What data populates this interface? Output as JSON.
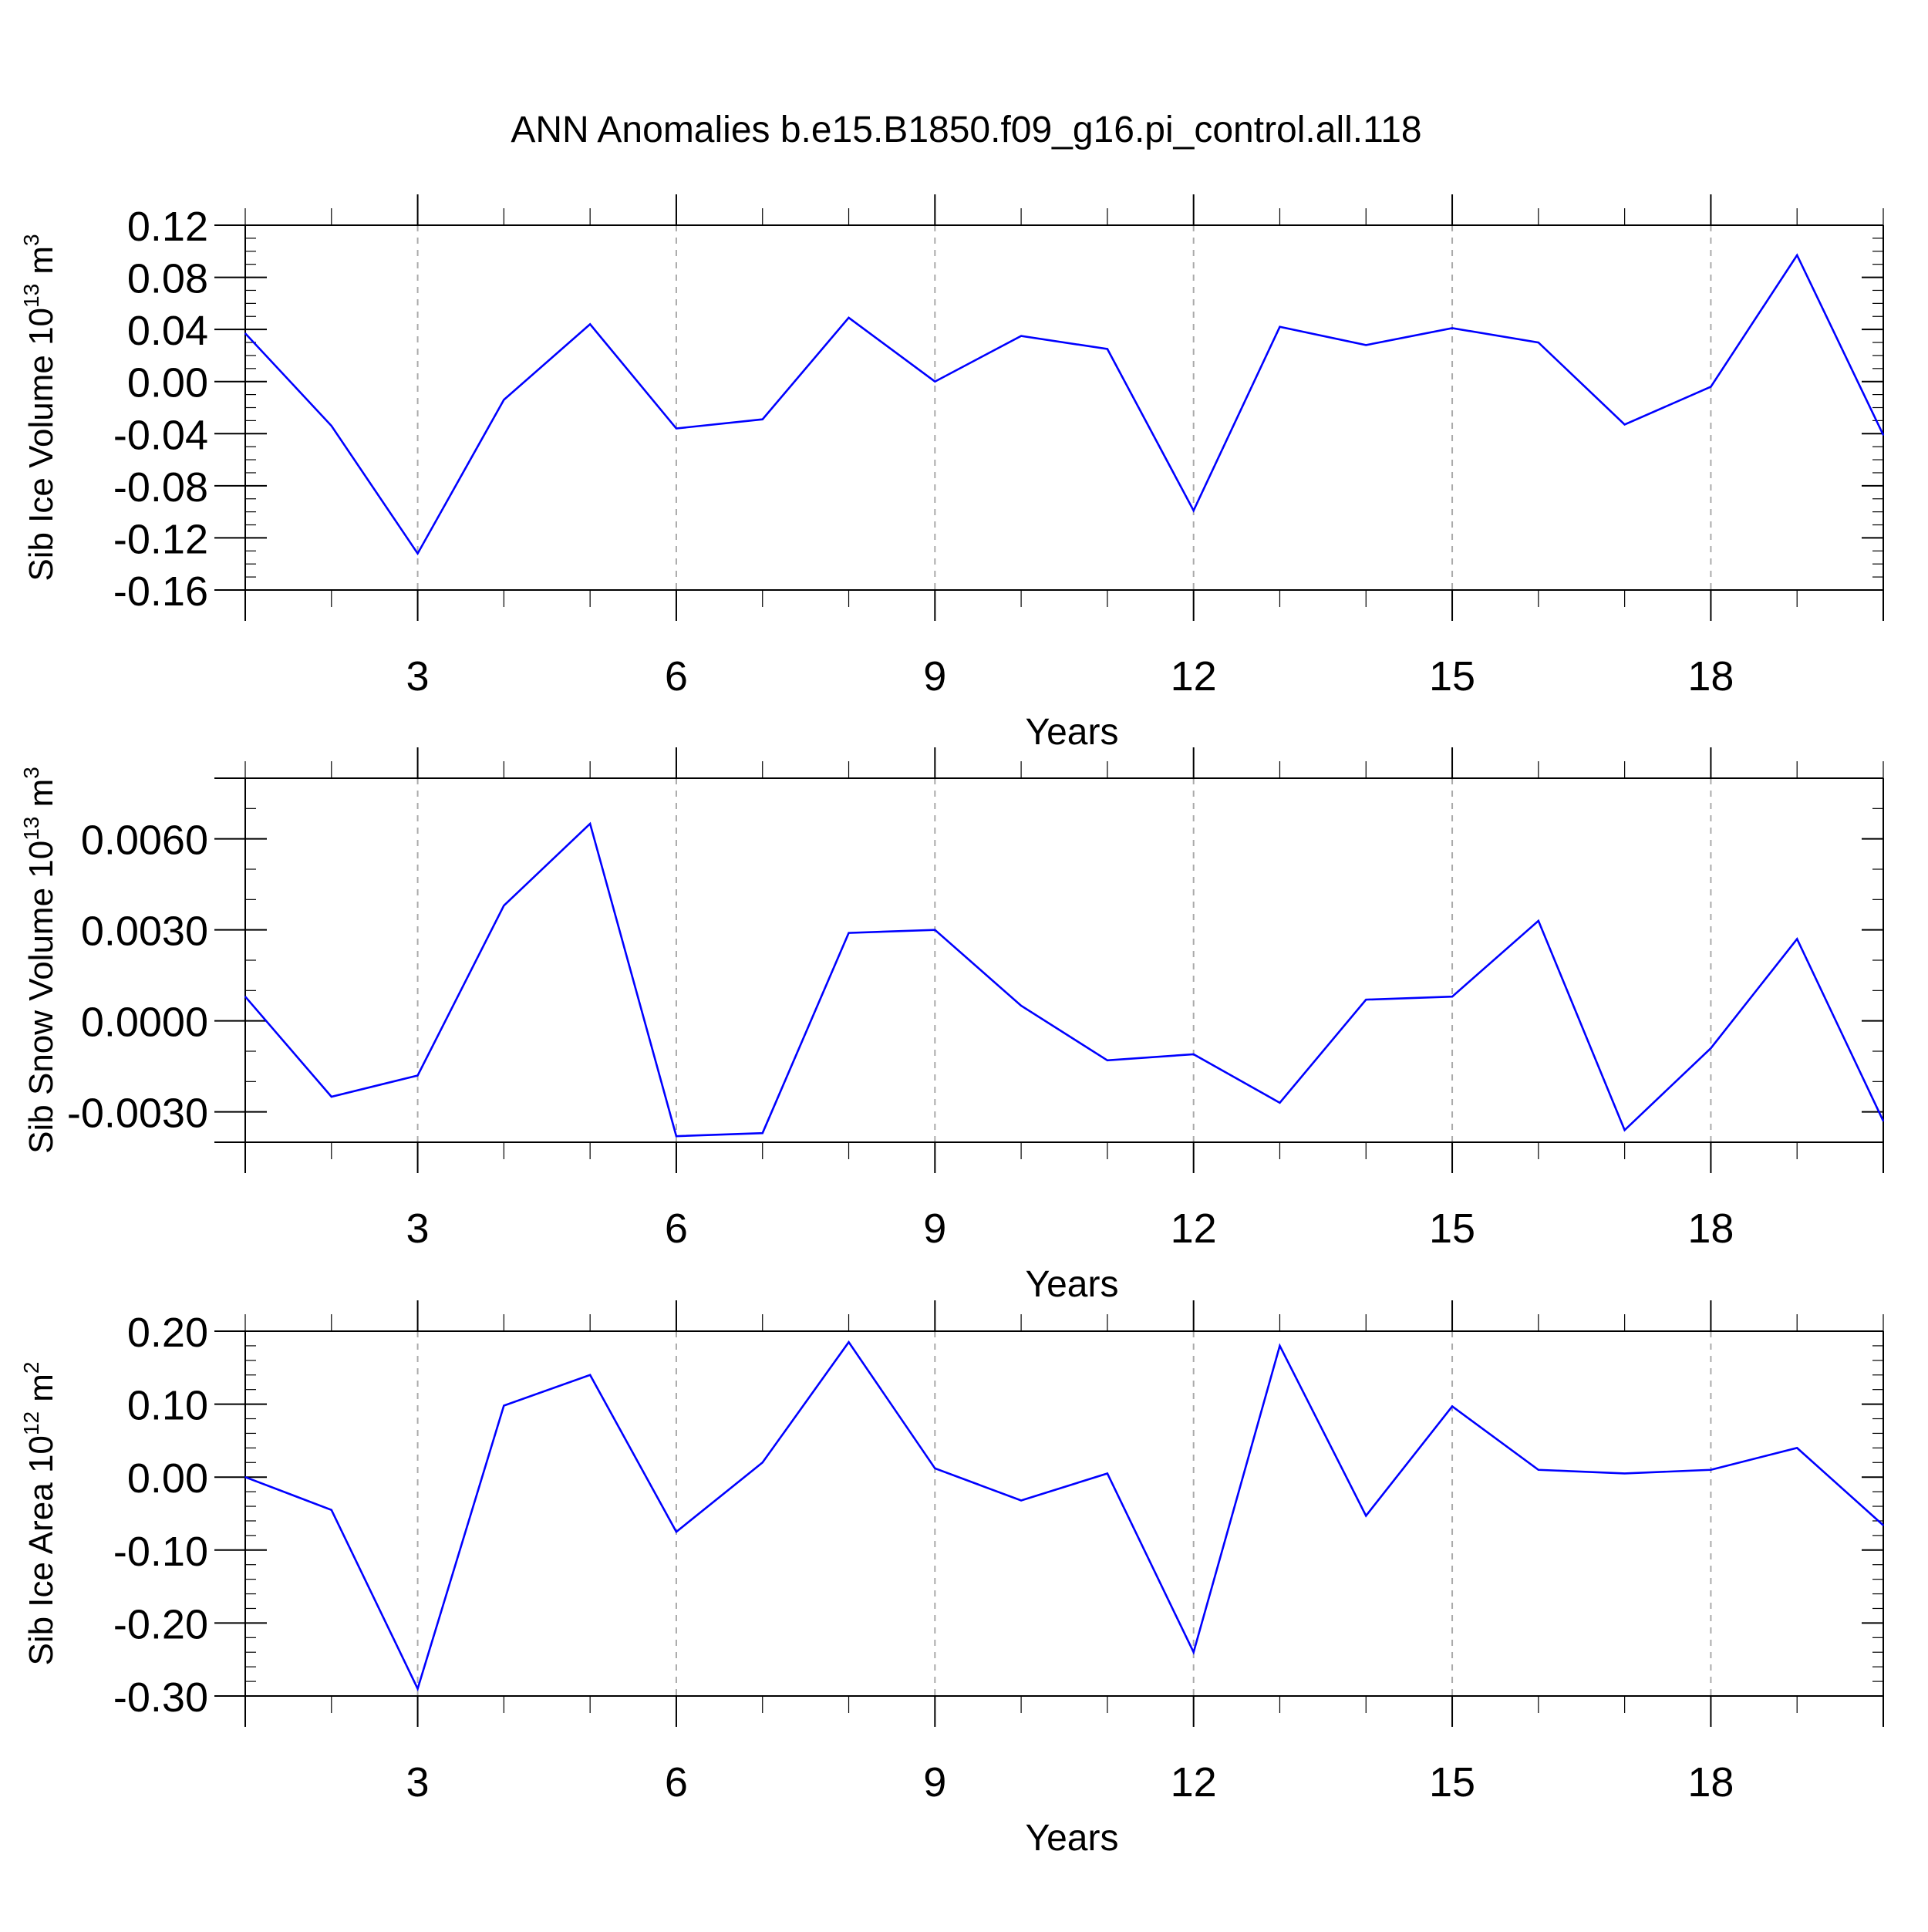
{
  "title": "ANN Anomalies b.e15.B1850.f09_g16.pi_control.all.118",
  "chart_data": [
    {
      "type": "line",
      "ylabel_main": "Sib Ice Volume 10",
      "ylabel_sup": "13",
      "ylabel_unit": " m",
      "ylabel_unit_sup": "3",
      "xlabel": "Years",
      "xlim": [
        1,
        20
      ],
      "ylim": [
        -0.16,
        0.12
      ],
      "yticks": [
        -0.16,
        -0.12,
        -0.08,
        -0.04,
        0.0,
        0.04,
        0.08,
        0.12
      ],
      "ytick_labels": [
        "-0.16",
        "-0.12",
        "-0.08",
        "-0.04",
        "0.00",
        "0.04",
        "0.08",
        "0.12"
      ],
      "y_minor_step": 0.01,
      "xticks": [
        3,
        6,
        9,
        12,
        15,
        18
      ],
      "xtick_labels": [
        "3",
        "6",
        "9",
        "12",
        "15",
        "18"
      ],
      "grid": "dashed vertical at major x ticks",
      "color": "#0000ff",
      "x": [
        1,
        2,
        3,
        4,
        5,
        6,
        7,
        8,
        9,
        10,
        11,
        12,
        13,
        14,
        15,
        16,
        17,
        18,
        19,
        20
      ],
      "values": [
        0.037,
        -0.034,
        -0.132,
        -0.014,
        0.044,
        -0.036,
        -0.029,
        0.049,
        0.0,
        0.035,
        0.025,
        -0.099,
        0.042,
        0.028,
        0.041,
        0.03,
        -0.033,
        -0.004,
        0.097,
        -0.041
      ]
    },
    {
      "type": "line",
      "ylabel_main": "Sib Snow Volume 10",
      "ylabel_sup": "13",
      "ylabel_unit": " m",
      "ylabel_unit_sup": "3",
      "xlabel": "Years",
      "xlim": [
        1,
        20
      ],
      "ylim": [
        -0.004,
        0.008
      ],
      "yticks": [
        -0.003,
        0.0,
        0.003,
        0.006
      ],
      "ytick_labels": [
        "-0.0030",
        "0.0000",
        "0.0030",
        "0.0060"
      ],
      "y_minor_step": 0.001,
      "xticks": [
        3,
        6,
        9,
        12,
        15,
        18
      ],
      "xtick_labels": [
        "3",
        "6",
        "9",
        "12",
        "15",
        "18"
      ],
      "grid": "dashed vertical at major x ticks",
      "color": "#0000ff",
      "x": [
        1,
        2,
        3,
        4,
        5,
        6,
        7,
        8,
        9,
        10,
        11,
        12,
        13,
        14,
        15,
        16,
        17,
        18,
        19,
        20
      ],
      "values": [
        0.0008,
        -0.0025,
        -0.0018,
        0.0038,
        0.0065,
        -0.0038,
        -0.0037,
        0.0029,
        0.003,
        0.0005,
        -0.0013,
        -0.0011,
        -0.0027,
        0.0007,
        0.0008,
        0.0033,
        -0.0036,
        -0.0009,
        0.0027,
        -0.0033
      ]
    },
    {
      "type": "line",
      "ylabel_main": "Sib Ice Area 10",
      "ylabel_sup": "12",
      "ylabel_unit": " m",
      "ylabel_unit_sup": "2",
      "xlabel": "Years",
      "xlim": [
        1,
        20
      ],
      "ylim": [
        -0.3,
        0.2
      ],
      "yticks": [
        -0.3,
        -0.2,
        -0.1,
        0.0,
        0.1,
        0.2
      ],
      "ytick_labels": [
        "-0.30",
        "-0.20",
        "-0.10",
        "0.00",
        "0.10",
        "0.20"
      ],
      "y_minor_step": 0.02,
      "xticks": [
        3,
        6,
        9,
        12,
        15,
        18
      ],
      "xtick_labels": [
        "3",
        "6",
        "9",
        "12",
        "15",
        "18"
      ],
      "grid": "dashed vertical at major x ticks",
      "color": "#0000ff",
      "x": [
        1,
        2,
        3,
        4,
        5,
        6,
        7,
        8,
        9,
        10,
        11,
        12,
        13,
        14,
        15,
        16,
        17,
        18,
        19,
        20
      ],
      "values": [
        0.0,
        -0.045,
        -0.29,
        0.098,
        0.14,
        -0.075,
        0.02,
        0.185,
        0.012,
        -0.032,
        0.005,
        -0.24,
        0.18,
        -0.053,
        0.097,
        0.01,
        0.005,
        0.01,
        0.04,
        -0.066
      ]
    }
  ]
}
